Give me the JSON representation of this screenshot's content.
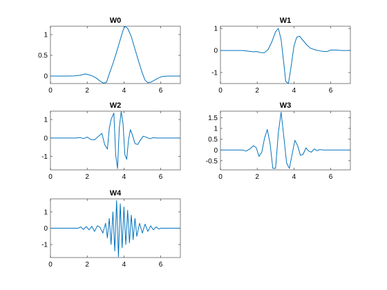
{
  "colors": {
    "line": "#0072BD",
    "axes": "#262626",
    "background": "#ffffff"
  },
  "chart_data": [
    {
      "type": "line",
      "title": "W0",
      "xlim": [
        0,
        7.07
      ],
      "ylim": [
        -0.18,
        1.2
      ],
      "xticks": [
        0,
        2,
        4,
        6
      ],
      "yticks": [
        0,
        0.5,
        1
      ],
      "xtick_labels": [
        "0",
        "2",
        "4",
        "6"
      ],
      "ytick_labels": [
        "0",
        "0.5",
        "1"
      ],
      "grid": false,
      "series": [
        {
          "x": [
            0,
            0.5,
            1.0,
            1.3,
            1.6,
            1.9,
            2.1,
            2.3,
            2.5,
            2.7,
            2.9,
            3.05,
            3.2,
            3.4,
            3.6,
            3.8,
            3.95,
            4.05,
            4.2,
            4.4,
            4.6,
            4.8,
            5.0,
            5.15,
            5.3,
            5.5,
            5.7,
            5.9,
            6.1,
            6.4,
            6.7,
            7.07
          ],
          "y": [
            0,
            0,
            0,
            0.005,
            0.02,
            0.05,
            0.03,
            0,
            -0.05,
            -0.12,
            -0.17,
            -0.15,
            0.05,
            0.3,
            0.58,
            0.88,
            1.1,
            1.2,
            1.15,
            0.95,
            0.65,
            0.35,
            0.07,
            -0.1,
            -0.16,
            -0.14,
            -0.09,
            -0.04,
            -0.01,
            0,
            0,
            0
          ]
        }
      ]
    },
    {
      "type": "line",
      "title": "W1",
      "xlim": [
        0,
        7.07
      ],
      "ylim": [
        -1.5,
        1.1
      ],
      "xticks": [
        0,
        2,
        4,
        6
      ],
      "yticks": [
        -1,
        0,
        1
      ],
      "xtick_labels": [
        "0",
        "2",
        "4",
        "6"
      ],
      "ytick_labels": [
        "-1",
        "0",
        "1"
      ],
      "grid": false,
      "series": [
        {
          "x": [
            0,
            0.5,
            1.0,
            1.2,
            1.4,
            1.6,
            1.8,
            2.0,
            2.2,
            2.4,
            2.6,
            2.8,
            3.0,
            3.15,
            3.3,
            3.45,
            3.55,
            3.7,
            3.85,
            4.0,
            4.15,
            4.3,
            4.5,
            4.7,
            4.9,
            5.2,
            5.5,
            5.8,
            6.0,
            6.3,
            6.6,
            7.07
          ],
          "y": [
            0,
            0,
            0,
            0,
            -0.02,
            -0.04,
            -0.06,
            -0.05,
            -0.1,
            -0.1,
            0.05,
            0.4,
            0.85,
            1.0,
            0.5,
            -0.6,
            -1.4,
            -1.5,
            -0.7,
            0.2,
            0.6,
            0.65,
            0.45,
            0.25,
            0.1,
            0.02,
            -0.03,
            -0.05,
            0.02,
            0.02,
            0,
            0
          ]
        }
      ]
    },
    {
      "type": "line",
      "title": "W2",
      "xlim": [
        0,
        7.07
      ],
      "ylim": [
        -1.72,
        1.45
      ],
      "xticks": [
        0,
        2,
        4,
        6
      ],
      "yticks": [
        -1,
        0,
        1
      ],
      "xtick_labels": [
        "0",
        "2",
        "4",
        "6"
      ],
      "ytick_labels": [
        "-1",
        "0",
        "1"
      ],
      "grid": false,
      "series": [
        {
          "x": [
            0,
            1.0,
            1.4,
            1.6,
            1.8,
            2.0,
            2.2,
            2.4,
            2.6,
            2.8,
            2.95,
            3.1,
            3.2,
            3.3,
            3.45,
            3.55,
            3.65,
            3.75,
            3.85,
            3.95,
            4.05,
            4.15,
            4.25,
            4.35,
            4.45,
            4.6,
            4.75,
            4.9,
            5.05,
            5.2,
            5.4,
            5.6,
            5.8,
            6.0,
            7.07
          ],
          "y": [
            0,
            0,
            0,
            0.03,
            -0.03,
            0.05,
            -0.08,
            -0.1,
            0.08,
            0.25,
            -0.35,
            -0.6,
            0.5,
            1.0,
            1.35,
            -0.9,
            -1.65,
            0.6,
            1.42,
            0.8,
            -0.9,
            -1.15,
            -0.1,
            0.45,
            0.2,
            -0.3,
            -0.35,
            -0.1,
            0.1,
            0.05,
            -0.04,
            0.02,
            0,
            0,
            0
          ]
        }
      ]
    },
    {
      "type": "line",
      "title": "W3",
      "xlim": [
        0,
        7.07
      ],
      "ylim": [
        -0.92,
        1.8
      ],
      "xticks": [
        0,
        2,
        4,
        6
      ],
      "yticks": [
        -0.5,
        0,
        0.5,
        1,
        1.5
      ],
      "xtick_labels": [
        "0",
        "2",
        "4",
        "6"
      ],
      "ytick_labels": [
        "-0.5",
        "0",
        "0.5",
        "1",
        "1.5"
      ],
      "grid": false,
      "series": [
        {
          "x": [
            0,
            1.0,
            1.2,
            1.4,
            1.6,
            1.8,
            1.95,
            2.1,
            2.25,
            2.4,
            2.55,
            2.7,
            2.85,
            3.0,
            3.15,
            3.3,
            3.45,
            3.6,
            3.75,
            3.9,
            4.05,
            4.2,
            4.35,
            4.5,
            4.65,
            4.8,
            4.95,
            5.1,
            5.25,
            5.4,
            5.6,
            5.8,
            6.0,
            7.07
          ],
          "y": [
            0,
            0,
            0,
            -0.05,
            0.05,
            0.2,
            0.1,
            -0.3,
            -0.1,
            0.55,
            0.95,
            0.3,
            -0.85,
            -0.85,
            0.8,
            1.75,
            0.6,
            -0.6,
            -0.85,
            -0.2,
            0.45,
            0.2,
            -0.25,
            -0.2,
            0.1,
            -0.05,
            -0.1,
            0.05,
            -0.03,
            0.02,
            0,
            0,
            0,
            0
          ]
        }
      ]
    },
    {
      "type": "line",
      "title": "W4",
      "xlim": [
        0,
        7.07
      ],
      "ylim": [
        -1.8,
        1.8
      ],
      "xticks": [
        0,
        2,
        4,
        6
      ],
      "yticks": [
        -1,
        0,
        1
      ],
      "xtick_labels": [
        "0",
        "2",
        "4",
        "6"
      ],
      "ytick_labels": [
        "-1",
        "0",
        "1"
      ],
      "grid": false,
      "series": [
        {
          "x": [
            0,
            1.5,
            1.65,
            1.8,
            1.95,
            2.1,
            2.25,
            2.4,
            2.55,
            2.7,
            2.85,
            3.0,
            3.1,
            3.2,
            3.3,
            3.4,
            3.5,
            3.6,
            3.7,
            3.8,
            3.9,
            4.0,
            4.1,
            4.2,
            4.3,
            4.4,
            4.5,
            4.6,
            4.7,
            4.85,
            5.0,
            5.15,
            5.3,
            5.45,
            5.6,
            5.75,
            5.9,
            6.0,
            7.07
          ],
          "y": [
            0,
            0,
            0.08,
            -0.08,
            0.1,
            -0.1,
            0.12,
            -0.2,
            0.15,
            0.05,
            -0.3,
            0.3,
            -0.6,
            0.6,
            -1.0,
            1.0,
            -1.4,
            1.7,
            -1.75,
            1.5,
            -1.2,
            1.3,
            -1.0,
            1.1,
            -0.9,
            0.8,
            -0.7,
            0.6,
            -0.5,
            0.3,
            -0.3,
            0.25,
            -0.2,
            0.15,
            -0.1,
            0.08,
            -0.05,
            0,
            0
          ]
        }
      ]
    }
  ]
}
